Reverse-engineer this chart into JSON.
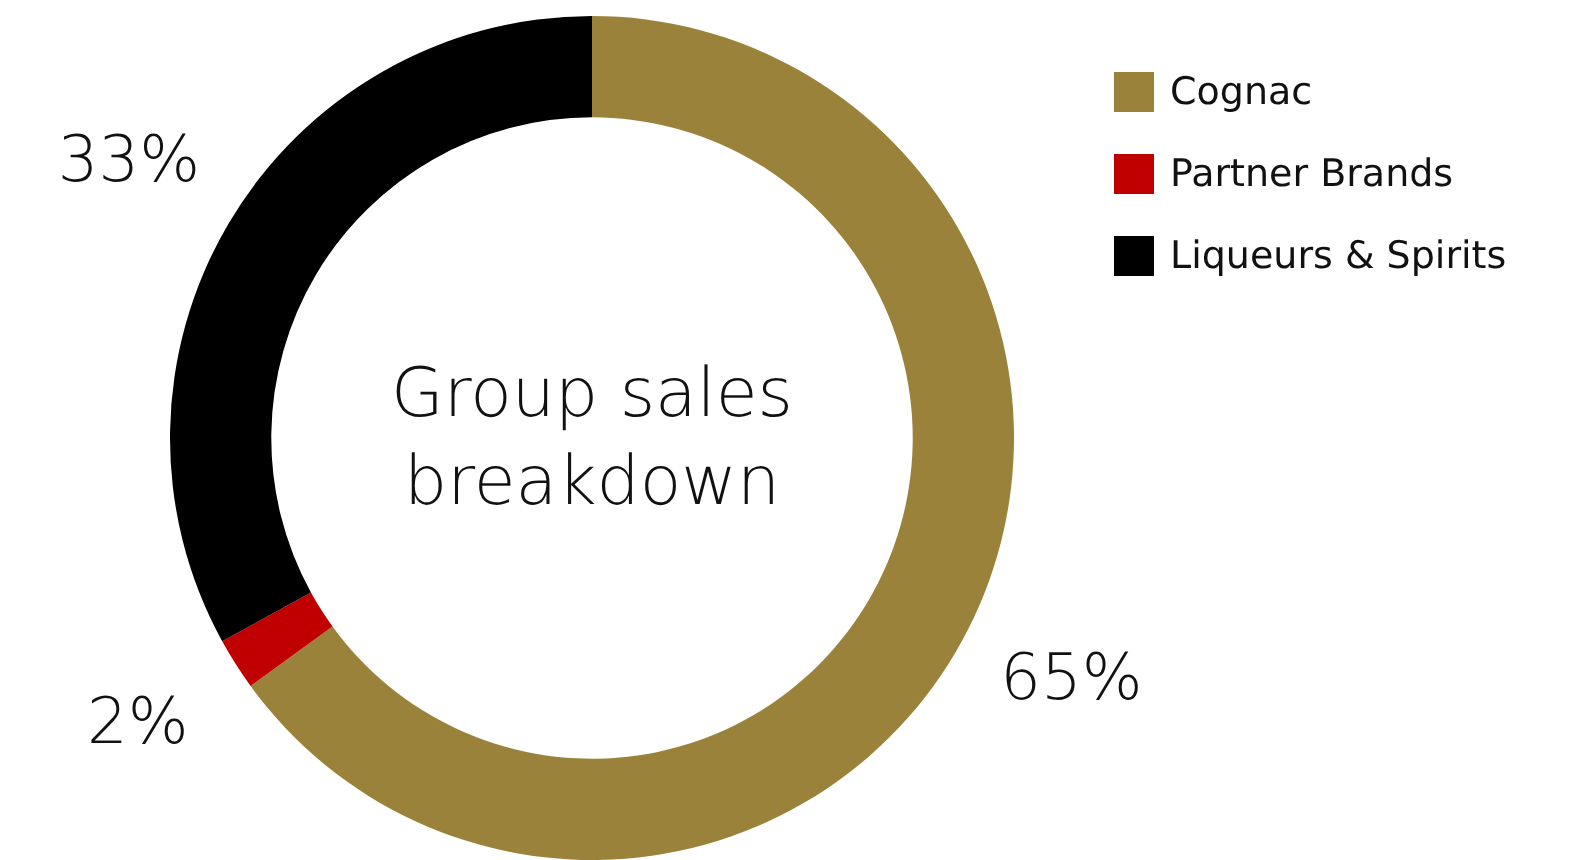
{
  "chart_data": {
    "type": "donut",
    "title": "Group sales breakdown",
    "categories": [
      "Cognac",
      "Partner Brands",
      "Liqueurs & Spirits"
    ],
    "values": [
      65,
      2,
      33
    ],
    "colors": [
      "#9a823a",
      "#c00000",
      "#000000"
    ],
    "value_labels": [
      "65%",
      "2%",
      "33%"
    ],
    "legend": "top right"
  }
}
